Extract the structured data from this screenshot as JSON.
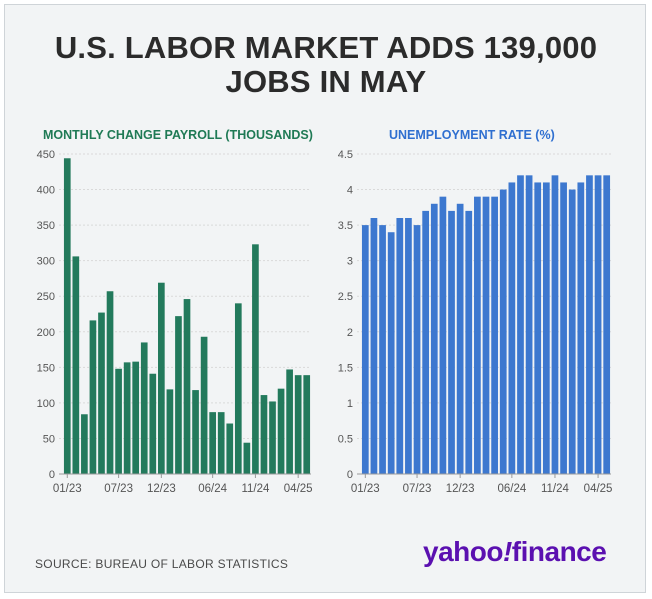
{
  "headline": {
    "line1": "U.S. LABOR MARKET ADDS 139,000",
    "line2": "JOBS IN MAY"
  },
  "footer": {
    "source": "SOURCE: BUREAU OF LABOR STATISTICS",
    "logo": "yahoo!finance"
  },
  "colors": {
    "payroll_bar": "#237a5c",
    "payroll_title": "#1f7a55",
    "unemployment_bar": "#3d78cf",
    "unemployment_title": "#2f6fd0",
    "grid": "#d9d9d9",
    "axis_text": "#555555",
    "logo": "#5b10b0"
  },
  "chart_data": [
    {
      "type": "bar",
      "title": "MONTHLY CHANGE PAYROLL (THOUSANDS)",
      "xlabel": "",
      "ylabel": "",
      "ylim": [
        0,
        450
      ],
      "yticks": [
        0,
        50,
        100,
        150,
        200,
        250,
        300,
        350,
        400,
        450
      ],
      "xtick_labels": [
        {
          "index": 0,
          "label": "01/23"
        },
        {
          "index": 6,
          "label": "07/23"
        },
        {
          "index": 11,
          "label": "12/23"
        },
        {
          "index": 17,
          "label": "06/24"
        },
        {
          "index": 22,
          "label": "11/24"
        },
        {
          "index": 27,
          "label": "04/25"
        }
      ],
      "categories": [
        "01/23",
        "02/23",
        "03/23",
        "04/23",
        "05/23",
        "06/23",
        "07/23",
        "08/23",
        "09/23",
        "10/23",
        "11/23",
        "12/23",
        "01/24",
        "02/24",
        "03/24",
        "04/24",
        "05/24",
        "06/24",
        "07/24",
        "08/24",
        "09/24",
        "10/24",
        "11/24",
        "12/24",
        "01/25",
        "02/25",
        "03/25",
        "04/25",
        "05/25"
      ],
      "values": [
        444,
        306,
        84,
        216,
        227,
        257,
        148,
        157,
        158,
        185,
        141,
        269,
        119,
        222,
        246,
        118,
        193,
        87,
        87,
        71,
        240,
        44,
        323,
        111,
        102,
        120,
        147,
        139,
        139
      ]
    },
    {
      "type": "bar",
      "title": "UNEMPLOYMENT RATE (%)",
      "xlabel": "",
      "ylabel": "",
      "ylim": [
        0,
        4.5
      ],
      "yticks": [
        "0",
        "0.5",
        "1",
        "1.5",
        "2",
        "2.5",
        "3",
        "3.5",
        "4",
        "4.5"
      ],
      "xtick_labels": [
        {
          "index": 0,
          "label": "01/23"
        },
        {
          "index": 6,
          "label": "07/23"
        },
        {
          "index": 11,
          "label": "12/23"
        },
        {
          "index": 17,
          "label": "06/24"
        },
        {
          "index": 22,
          "label": "11/24"
        },
        {
          "index": 27,
          "label": "04/25"
        }
      ],
      "categories": [
        "01/23",
        "02/23",
        "03/23",
        "04/23",
        "05/23",
        "06/23",
        "07/23",
        "08/23",
        "09/23",
        "10/23",
        "11/23",
        "12/23",
        "01/24",
        "02/24",
        "03/24",
        "04/24",
        "05/24",
        "06/24",
        "07/24",
        "08/24",
        "09/24",
        "10/24",
        "11/24",
        "12/24",
        "01/25",
        "02/25",
        "03/25",
        "04/25",
        "05/25"
      ],
      "values": [
        3.5,
        3.6,
        3.5,
        3.4,
        3.6,
        3.6,
        3.5,
        3.7,
        3.8,
        3.9,
        3.7,
        3.8,
        3.7,
        3.9,
        3.9,
        3.9,
        4.0,
        4.1,
        4.2,
        4.2,
        4.1,
        4.1,
        4.2,
        4.1,
        4.0,
        4.1,
        4.2,
        4.2,
        4.2
      ]
    }
  ]
}
